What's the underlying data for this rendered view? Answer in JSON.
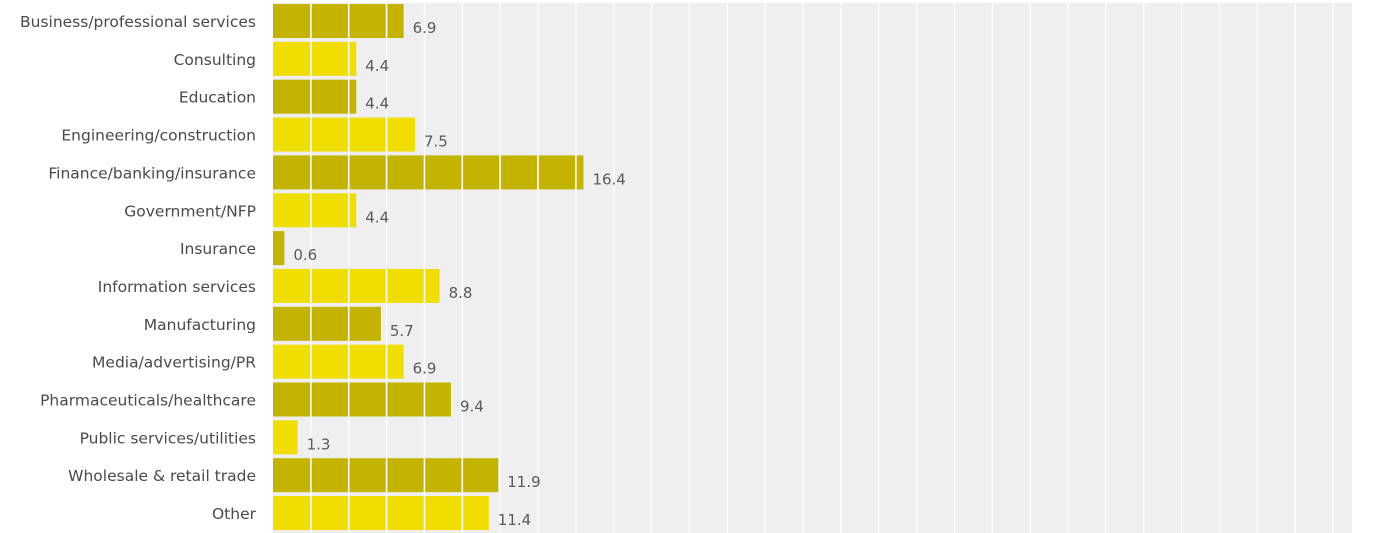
{
  "chart_data": {
    "type": "bar",
    "orientation": "horizontal",
    "categories": [
      "Business/professional services",
      "Consulting",
      "Education",
      "Engineering/construction",
      "Finance/banking/insurance",
      "Government/NFP",
      "Insurance",
      "Information services",
      "Manufacturing",
      "Media/advertising/PR",
      "Pharmaceuticals/healthcare",
      "Public services/utilities",
      "Wholesale & retail trade",
      "Other"
    ],
    "values": [
      6.9,
      4.4,
      4.4,
      7.5,
      16.4,
      4.4,
      0.6,
      8.8,
      5.7,
      6.9,
      9.4,
      1.3,
      11.9,
      11.4
    ],
    "value_labels": [
      "6.9",
      "4.4",
      "4.4",
      "7.5",
      "16.4",
      "4.4",
      "0.6",
      "8.8",
      "5.7",
      "6.9",
      "9.4",
      "1.3",
      "11.9",
      "11.4"
    ],
    "xlim": [
      0,
      57
    ],
    "grid_step": 2,
    "grid": true,
    "title": "",
    "xlabel": "",
    "ylabel": "",
    "colors": {
      "bar_odd": "#c4b400",
      "bar_even": "#f0de00",
      "background": "#efeff1",
      "gridline": "#ffffff"
    }
  }
}
